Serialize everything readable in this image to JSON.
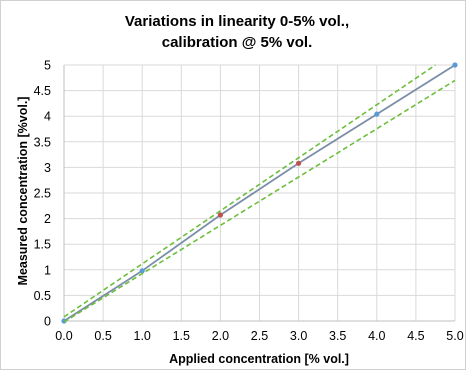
{
  "chart_data": {
    "type": "line",
    "title_line1": "Variations in linearity 0-5% vol.,",
    "title_line2": "calibration @ 5% vol.",
    "xlabel": "Applied concentration [% vol.]",
    "ylabel": "Measured concentration [%vol.]",
    "xlim": [
      0,
      5
    ],
    "ylim": [
      0,
      5
    ],
    "x_ticks": [
      "0.0",
      "0.5",
      "1.0",
      "1.5",
      "2.0",
      "2.5",
      "3.0",
      "3.5",
      "4.0",
      "4.5",
      "5.0"
    ],
    "y_ticks": [
      "0",
      "0.5",
      "1",
      "1.5",
      "2",
      "2.5",
      "3",
      "3.5",
      "4",
      "4.5",
      "5"
    ],
    "grid": true,
    "legend": "none",
    "series": [
      {
        "style": "solid-markers",
        "color": "#7b8ea8",
        "marker_color": "#5b9bd5",
        "x": [
          0,
          1,
          2,
          3,
          4,
          5
        ],
        "y": [
          0,
          0.98,
          2.07,
          3.08,
          4.04,
          5.0
        ],
        "marker_colors": [
          "#5b9bd5",
          "#5b9bd5",
          "#c0504d",
          "#c0504d",
          "#5b9bd5",
          "#5b9bd5"
        ]
      },
      {
        "style": "dashed",
        "color": "#6cbf3c",
        "x": [
          0,
          4.75
        ],
        "y": [
          0.08,
          5.0
        ]
      },
      {
        "style": "dashed",
        "color": "#6cbf3c",
        "x": [
          0,
          5
        ],
        "y": [
          -0.02,
          4.7
        ]
      }
    ]
  }
}
